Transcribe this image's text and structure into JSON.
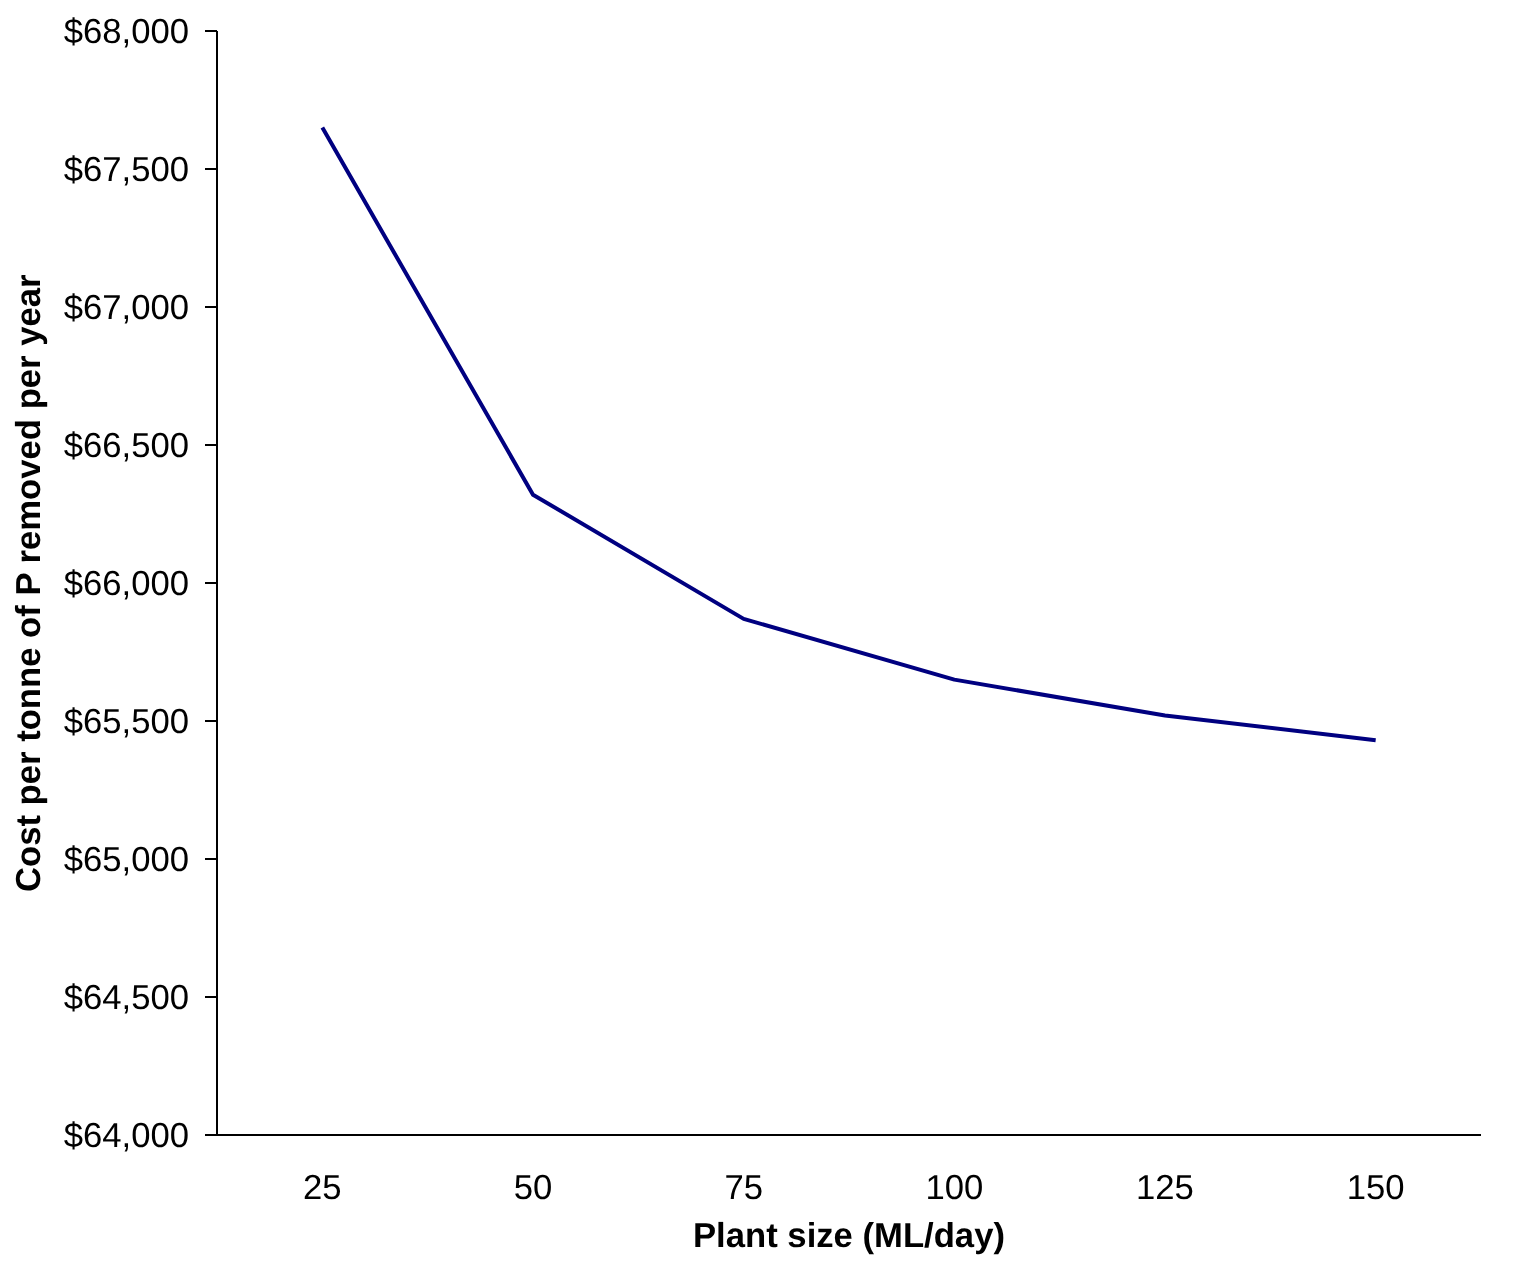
{
  "chart_data": {
    "type": "line",
    "xlabel": "Plant size (ML/day)",
    "ylabel": "Cost per tonne of P removed per year",
    "categories": [
      "25",
      "50",
      "75",
      "100",
      "125",
      "150"
    ],
    "series": [
      {
        "color": "#000080",
        "values": [
          67650,
          66320,
          65870,
          65650,
          65520,
          65430
        ]
      }
    ],
    "ylim": [
      64000,
      68000
    ],
    "yticks": [
      {
        "value": 64000,
        "label": "$64,000"
      },
      {
        "value": 64500,
        "label": "$64,500"
      },
      {
        "value": 65000,
        "label": "$65,000"
      },
      {
        "value": 65500,
        "label": "$65,500"
      },
      {
        "value": 66000,
        "label": "$66,000"
      },
      {
        "value": 66500,
        "label": "$66,500"
      },
      {
        "value": 67000,
        "label": "$67,000"
      },
      {
        "value": 67500,
        "label": "$67,500"
      },
      {
        "value": 68000,
        "label": "$68,000"
      }
    ],
    "grid": false,
    "marker": "none",
    "line_style": "solid"
  }
}
